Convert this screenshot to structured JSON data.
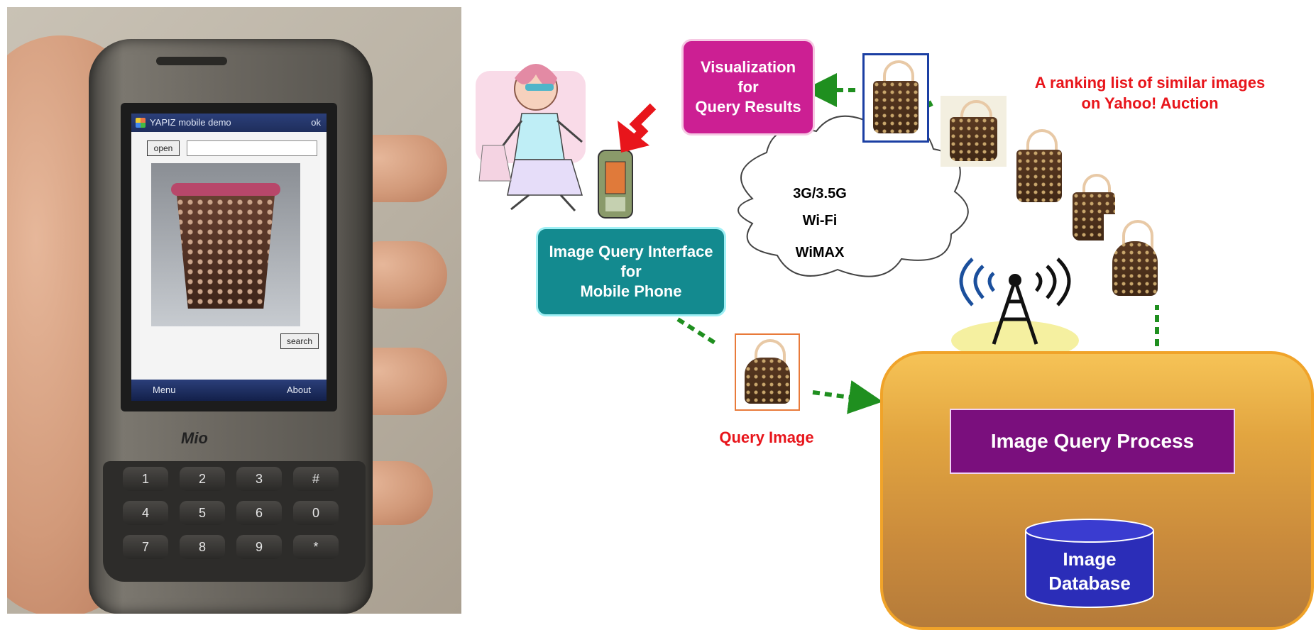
{
  "phone_screen": {
    "title": "YAPIZ mobile demo",
    "ok": "ok",
    "open_button": "open",
    "search_button": "search",
    "menu": "Menu",
    "about": "About"
  },
  "phone_brand": "Mio",
  "keypad": [
    "1",
    "2",
    "3",
    "#",
    "4",
    "5",
    "6",
    "0",
    "7",
    "8",
    "9",
    "*"
  ],
  "diagram": {
    "visualization_box": "Visualization\nfor\nQuery Results",
    "query_interface_box": "Image Query Interface\nfor\nMobile Phone",
    "network_types": [
      "3G/3.5G",
      "Wi-Fi",
      "WiMAX"
    ],
    "query_image_label": "Query Image",
    "ranking_label": "A ranking list of similar images\non Yahoo! Auction",
    "process_box": "Image Query Process",
    "database": "Image\nDatabase"
  },
  "colors": {
    "visualization": "#cc1f93",
    "query_interface": "#138a8f",
    "process": "#7a0f7d",
    "database": "#2b2db8",
    "label_red": "#e8151b",
    "arrow_green": "#1f8f1f",
    "flow_cyan": "#a6f4ee"
  }
}
